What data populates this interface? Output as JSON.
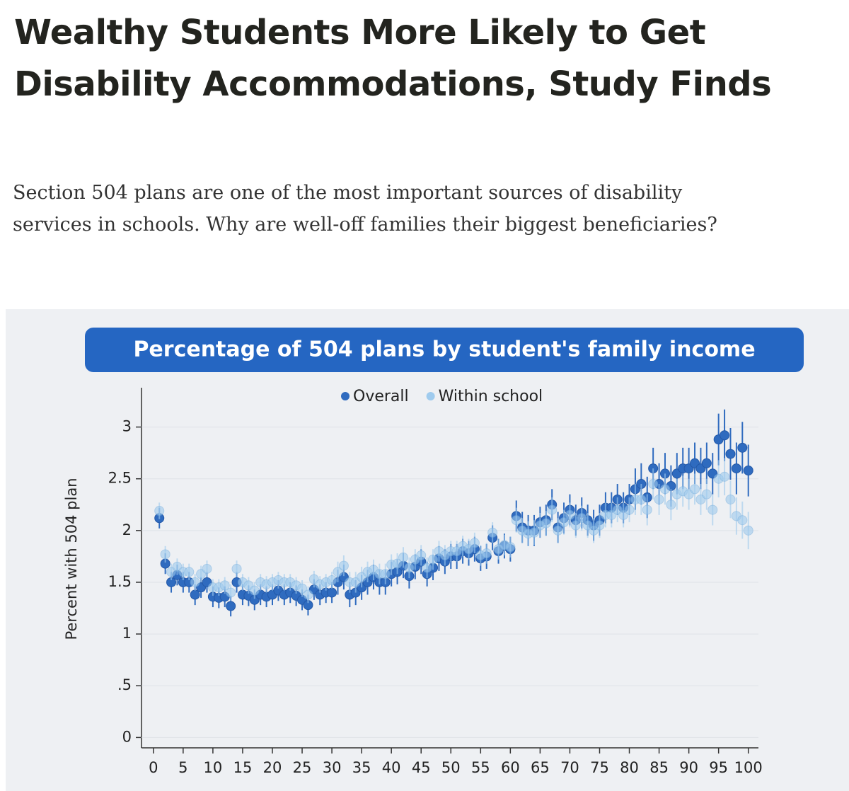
{
  "header": {
    "title": "Wealthy Students More Likely to Get Disability Accommodations, Study Finds",
    "subtitle": "Section 504 plans are one of the most important sources of disability services in schools. Why are well-off families their biggest beneficiaries?"
  },
  "chart_data": {
    "type": "scatter",
    "title": "Percentage of 504 plans by student's family income",
    "ylabel": "Percent with 504 plan",
    "x": [
      1,
      2,
      3,
      4,
      5,
      6,
      7,
      8,
      9,
      10,
      11,
      12,
      13,
      14,
      15,
      16,
      17,
      18,
      19,
      20,
      21,
      22,
      23,
      24,
      25,
      26,
      27,
      28,
      29,
      30,
      31,
      32,
      33,
      34,
      35,
      36,
      37,
      38,
      39,
      40,
      41,
      42,
      43,
      44,
      45,
      46,
      47,
      48,
      49,
      50,
      51,
      52,
      53,
      54,
      55,
      56,
      57,
      58,
      59,
      60,
      61,
      62,
      63,
      64,
      65,
      66,
      67,
      68,
      69,
      70,
      71,
      72,
      73,
      74,
      75,
      76,
      77,
      78,
      79,
      80,
      81,
      82,
      83,
      84,
      85,
      86,
      87,
      88,
      89,
      90,
      91,
      92,
      93,
      94,
      95,
      96,
      97,
      98,
      99,
      100
    ],
    "series": [
      {
        "name": "Overall",
        "color": "#2f6bbf",
        "values": [
          2.12,
          1.68,
          1.5,
          1.57,
          1.5,
          1.5,
          1.38,
          1.45,
          1.5,
          1.36,
          1.35,
          1.36,
          1.27,
          1.5,
          1.38,
          1.37,
          1.33,
          1.38,
          1.36,
          1.38,
          1.42,
          1.38,
          1.4,
          1.37,
          1.33,
          1.28,
          1.43,
          1.38,
          1.4,
          1.4,
          1.5,
          1.55,
          1.38,
          1.4,
          1.45,
          1.5,
          1.55,
          1.5,
          1.5,
          1.58,
          1.6,
          1.66,
          1.56,
          1.65,
          1.7,
          1.58,
          1.64,
          1.73,
          1.7,
          1.75,
          1.75,
          1.8,
          1.78,
          1.82,
          1.73,
          1.75,
          1.93,
          1.8,
          1.85,
          1.82,
          2.14,
          2.03,
          2.0,
          2.0,
          2.08,
          2.1,
          2.25,
          2.03,
          2.12,
          2.2,
          2.1,
          2.17,
          2.1,
          2.05,
          2.1,
          2.22,
          2.22,
          2.3,
          2.22,
          2.3,
          2.4,
          2.45,
          2.32,
          2.6,
          2.45,
          2.55,
          2.43,
          2.55,
          2.6,
          2.6,
          2.65,
          2.6,
          2.65,
          2.55,
          2.88,
          2.92,
          2.74,
          2.6,
          2.8,
          2.58
        ],
        "errors": [
          0.1,
          0.1,
          0.1,
          0.1,
          0.1,
          0.1,
          0.1,
          0.1,
          0.1,
          0.1,
          0.1,
          0.1,
          0.1,
          0.1,
          0.1,
          0.1,
          0.1,
          0.1,
          0.1,
          0.1,
          0.1,
          0.1,
          0.1,
          0.1,
          0.1,
          0.1,
          0.1,
          0.1,
          0.1,
          0.1,
          0.12,
          0.12,
          0.12,
          0.12,
          0.12,
          0.12,
          0.12,
          0.12,
          0.12,
          0.12,
          0.12,
          0.12,
          0.12,
          0.12,
          0.12,
          0.12,
          0.12,
          0.12,
          0.12,
          0.12,
          0.12,
          0.12,
          0.12,
          0.12,
          0.12,
          0.12,
          0.12,
          0.12,
          0.12,
          0.12,
          0.15,
          0.15,
          0.15,
          0.15,
          0.15,
          0.15,
          0.15,
          0.15,
          0.15,
          0.15,
          0.15,
          0.15,
          0.15,
          0.15,
          0.15,
          0.15,
          0.15,
          0.15,
          0.15,
          0.15,
          0.2,
          0.2,
          0.2,
          0.2,
          0.2,
          0.2,
          0.2,
          0.2,
          0.2,
          0.2,
          0.2,
          0.2,
          0.2,
          0.2,
          0.25,
          0.25,
          0.25,
          0.25,
          0.25,
          0.25
        ]
      },
      {
        "name": "Within school",
        "color": "#9fcbee",
        "values": [
          2.19,
          1.77,
          1.6,
          1.65,
          1.6,
          1.6,
          1.5,
          1.58,
          1.63,
          1.45,
          1.45,
          1.47,
          1.4,
          1.63,
          1.5,
          1.47,
          1.42,
          1.5,
          1.48,
          1.5,
          1.52,
          1.5,
          1.5,
          1.47,
          1.44,
          1.38,
          1.53,
          1.48,
          1.5,
          1.52,
          1.6,
          1.66,
          1.5,
          1.5,
          1.55,
          1.6,
          1.62,
          1.58,
          1.58,
          1.67,
          1.68,
          1.74,
          1.64,
          1.72,
          1.76,
          1.64,
          1.72,
          1.8,
          1.76,
          1.8,
          1.8,
          1.85,
          1.82,
          1.88,
          1.76,
          1.78,
          1.98,
          1.82,
          1.86,
          1.84,
          2.1,
          2.0,
          1.97,
          1.98,
          2.05,
          2.07,
          2.2,
          2.0,
          2.08,
          2.15,
          2.05,
          2.12,
          2.05,
          2.0,
          2.05,
          2.15,
          2.15,
          2.2,
          2.15,
          2.2,
          2.3,
          2.3,
          2.2,
          2.45,
          2.3,
          2.4,
          2.25,
          2.35,
          2.38,
          2.35,
          2.4,
          2.3,
          2.35,
          2.2,
          2.5,
          2.52,
          2.3,
          2.14,
          2.1,
          2.0
        ],
        "errors": [
          0.08,
          0.08,
          0.08,
          0.08,
          0.08,
          0.08,
          0.08,
          0.08,
          0.08,
          0.08,
          0.08,
          0.08,
          0.08,
          0.08,
          0.08,
          0.08,
          0.08,
          0.08,
          0.08,
          0.08,
          0.08,
          0.08,
          0.08,
          0.08,
          0.08,
          0.08,
          0.08,
          0.08,
          0.08,
          0.08,
          0.1,
          0.1,
          0.1,
          0.1,
          0.1,
          0.1,
          0.1,
          0.1,
          0.1,
          0.1,
          0.1,
          0.1,
          0.1,
          0.1,
          0.1,
          0.1,
          0.1,
          0.1,
          0.1,
          0.1,
          0.1,
          0.1,
          0.1,
          0.1,
          0.1,
          0.1,
          0.1,
          0.1,
          0.1,
          0.1,
          0.12,
          0.12,
          0.12,
          0.12,
          0.12,
          0.12,
          0.12,
          0.12,
          0.12,
          0.12,
          0.12,
          0.12,
          0.12,
          0.12,
          0.12,
          0.12,
          0.12,
          0.12,
          0.12,
          0.12,
          0.15,
          0.15,
          0.15,
          0.15,
          0.15,
          0.15,
          0.15,
          0.15,
          0.15,
          0.15,
          0.15,
          0.15,
          0.15,
          0.15,
          0.18,
          0.18,
          0.18,
          0.18,
          0.18,
          0.18
        ]
      }
    ],
    "xlim": [
      -2,
      101.7
    ],
    "xticks": [
      0,
      5,
      10,
      15,
      20,
      25,
      30,
      35,
      40,
      45,
      50,
      55,
      60,
      65,
      70,
      75,
      80,
      85,
      90,
      95,
      100
    ],
    "ylim": [
      -0.1,
      3.38
    ],
    "yticks": [
      0,
      {
        "value": 0.5,
        "label": ".5"
      },
      1,
      1.5,
      2,
      2.5,
      3
    ],
    "grid": true,
    "legend": "top"
  }
}
